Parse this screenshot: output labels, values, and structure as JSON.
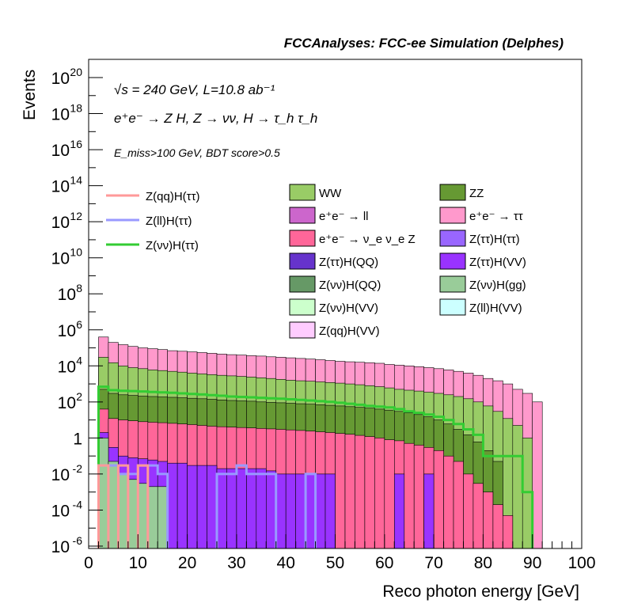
{
  "chart_data": {
    "type": "bar",
    "stacked": true,
    "title": "FCCAnalyses: FCC-ee Simulation (Delphes)",
    "xlabel": "Reco photon energy [GeV]",
    "ylabel": "Events",
    "xlim": [
      0,
      100
    ],
    "ylim": [
      1e-06,
      3e+20
    ],
    "yscale": "log",
    "x_ticks": [
      "0",
      "10",
      "20",
      "30",
      "40",
      "50",
      "60",
      "70",
      "80",
      "90",
      "100"
    ],
    "y_ticks": [
      {
        "base": "10",
        "exp": "-6"
      },
      {
        "base": "10",
        "exp": "-4"
      },
      {
        "base": "10",
        "exp": "-2"
      },
      {
        "base": "1",
        "exp": ""
      },
      {
        "base": "10",
        "exp": "2"
      },
      {
        "base": "10",
        "exp": "4"
      },
      {
        "base": "10",
        "exp": "6"
      },
      {
        "base": "10",
        "exp": "8"
      },
      {
        "base": "10",
        "exp": "10"
      },
      {
        "base": "10",
        "exp": "12"
      },
      {
        "base": "10",
        "exp": "14"
      },
      {
        "base": "10",
        "exp": "16"
      },
      {
        "base": "10",
        "exp": "18"
      },
      {
        "base": "10",
        "exp": "20"
      }
    ],
    "annotations": [
      "√s = 240 GeV, L=10.8 ab⁻¹",
      "e⁺e⁻ → Z H, Z → νν, H → τ_h τ_h",
      "E_miss>100 GeV, BDT score>0.5"
    ],
    "bins_center": [
      3,
      5,
      7,
      9,
      11,
      13,
      15,
      17,
      19,
      21,
      23,
      25,
      27,
      29,
      31,
      33,
      35,
      37,
      39,
      41,
      43,
      45,
      47,
      49,
      51,
      53,
      55,
      57,
      59,
      61,
      63,
      65,
      67,
      69,
      71,
      73,
      75,
      77,
      79,
      81,
      83,
      85,
      87,
      89,
      91
    ],
    "stack_layers": [
      {
        "name": "Z(νν)H(gg)",
        "color": "#99cc99",
        "values": [
          1.0,
          0.05,
          0.01,
          0.005,
          0.003,
          0.002,
          0.002,
          null,
          null,
          null,
          null,
          null,
          null,
          null,
          null,
          null,
          null,
          null,
          null,
          null,
          null,
          null,
          null,
          null,
          null,
          null,
          null,
          null,
          null,
          null,
          null,
          null,
          null,
          null,
          null,
          null,
          null,
          null,
          null,
          null,
          null,
          null,
          null,
          null,
          null
        ]
      },
      {
        "name": "Z(ττ)H(VV)",
        "color": "#9933ff",
        "values": [
          2.0,
          0.3,
          0.1,
          0.08,
          0.07,
          0.06,
          0.05,
          0.04,
          0.04,
          0.03,
          0.03,
          0.03,
          0.02,
          0.02,
          0.02,
          0.02,
          0.02,
          0.015,
          0.01,
          0.01,
          0.01,
          0.01,
          0.01,
          0.01,
          null,
          null,
          null,
          null,
          null,
          null,
          0.01,
          null,
          null,
          0.01,
          null,
          null,
          null,
          null,
          null,
          null,
          null,
          null,
          null,
          null,
          null
        ]
      },
      {
        "name": "e⁺e⁻ → ν_e ν_e Z",
        "color": "#ff6699",
        "values": [
          40,
          12,
          10,
          9,
          8,
          7.5,
          7,
          6.5,
          6,
          5.5,
          5,
          4.5,
          4.2,
          4,
          3.8,
          3.6,
          3.4,
          3.2,
          3,
          2.8,
          2.6,
          2.4,
          2.2,
          2,
          1.8,
          1.6,
          1.4,
          1.2,
          1,
          0.8,
          0.7,
          0.5,
          0.4,
          0.3,
          0.2,
          0.1,
          0.05,
          0.01,
          0.003,
          0.001,
          0.0002,
          5e-05,
          null,
          null,
          null
        ]
      },
      {
        "name": "ZZ",
        "color": "#669933",
        "values": [
          500,
          300,
          250,
          230,
          210,
          200,
          190,
          180,
          170,
          160,
          150,
          140,
          130,
          120,
          115,
          110,
          100,
          95,
          90,
          85,
          80,
          75,
          70,
          65,
          60,
          55,
          50,
          45,
          40,
          35,
          30,
          25,
          20,
          15,
          10,
          6,
          3,
          1.5,
          0.6,
          0.2,
          0.05,
          null,
          null,
          null,
          null
        ]
      },
      {
        "name": "WW",
        "color": "#99cc66",
        "values": [
          30000,
          15000,
          10000,
          8000,
          7000,
          6000,
          5500,
          5000,
          4500,
          4000,
          3600,
          3300,
          3000,
          2800,
          2600,
          2400,
          2200,
          2000,
          1800,
          1600,
          1500,
          1400,
          1300,
          1200,
          1100,
          1000,
          900,
          800,
          700,
          600,
          500,
          450,
          400,
          350,
          300,
          250,
          200,
          150,
          100,
          60,
          30,
          12,
          5,
          1,
          null
        ]
      },
      {
        "name": "e⁺e⁻ → ττ",
        "color": "#ff99cc",
        "values": [
          400000,
          200000,
          150000,
          120000,
          100000,
          90000,
          80000,
          70000,
          65000,
          60000,
          55000,
          50000,
          45000,
          42000,
          40000,
          37000,
          35000,
          32000,
          30000,
          28000,
          26000,
          24000,
          22000,
          20000,
          18000,
          17000,
          16000,
          15000,
          14000,
          12000,
          11000,
          10000,
          9000,
          8000,
          7000,
          6000,
          5000,
          4000,
          3000,
          2000,
          1500,
          1000,
          500,
          300,
          100
        ]
      }
    ],
    "legend": [
      {
        "name": "Z(qq)H(ττ)",
        "color": "#ff9999",
        "style": "line"
      },
      {
        "name": "Z(ll)H(ττ)",
        "color": "#9999ff",
        "style": "line"
      },
      {
        "name": "Z(νν)H(ττ)",
        "color": "#33cc33",
        "style": "line"
      },
      {
        "name": "WW",
        "color": "#99cc66",
        "style": "box"
      },
      {
        "name": "ZZ",
        "color": "#669933",
        "style": "box"
      },
      {
        "name": "e⁺e⁻ → ll",
        "color": "#cc66cc",
        "style": "box"
      },
      {
        "name": "e⁺e⁻ → ττ",
        "color": "#ff99cc",
        "style": "box"
      },
      {
        "name": "e⁺e⁻ → ν_e ν_e Z",
        "color": "#ff6699",
        "style": "box"
      },
      {
        "name": "Z(ττ)H(ττ)",
        "color": "#9966ff",
        "style": "box"
      },
      {
        "name": "Z(ττ)H(QQ)",
        "color": "#6633cc",
        "style": "box"
      },
      {
        "name": "Z(ττ)H(VV)",
        "color": "#9933ff",
        "style": "box"
      },
      {
        "name": "Z(νν)H(QQ)",
        "color": "#669966",
        "style": "box"
      },
      {
        "name": "Z(νν)H(gg)",
        "color": "#99cc99",
        "style": "box"
      },
      {
        "name": "Z(νν)H(VV)",
        "color": "#ccffcc",
        "style": "box"
      },
      {
        "name": "Z(ll)H(VV)",
        "color": "#ccffff",
        "style": "box"
      },
      {
        "name": "Z(qq)H(VV)",
        "color": "#ffccff",
        "style": "box"
      }
    ],
    "signal_lines": [
      {
        "name": "Z(νν)H(ττ)",
        "color": "#33cc33",
        "values": [
          700,
          450,
          420,
          400,
          380,
          360,
          340,
          320,
          300,
          280,
          260,
          240,
          220,
          200,
          190,
          180,
          170,
          160,
          150,
          140,
          130,
          120,
          110,
          100,
          90,
          80,
          70,
          60,
          55,
          50,
          40,
          30,
          25,
          20,
          15,
          10,
          6,
          3,
          1.5,
          0.1,
          0.1,
          0.1,
          0.1,
          0.001,
          null
        ]
      },
      {
        "name": "Z(ll)H(ττ)",
        "color": "#9999ff",
        "values": [
          0.03,
          0.03,
          0.01,
          0.01,
          0.03,
          0.03,
          0.01,
          null,
          null,
          null,
          null,
          null,
          0.01,
          0.01,
          0.03,
          0.01,
          0.01,
          0.01,
          null,
          null,
          null,
          0.01,
          null,
          null,
          null,
          null,
          null,
          null,
          null,
          null,
          null,
          null,
          null,
          null,
          null,
          null,
          null,
          null,
          null,
          null,
          null,
          null,
          null,
          null,
          null
        ]
      },
      {
        "name": "Z(qq)H(ττ)",
        "color": "#ff9999",
        "values": [
          0.03,
          null,
          0.03,
          null,
          0.03,
          null,
          null,
          null,
          null,
          null,
          null,
          null,
          null,
          null,
          null,
          null,
          null,
          null,
          null,
          null,
          null,
          null,
          null,
          null,
          null,
          null,
          null,
          null,
          null,
          null,
          null,
          null,
          null,
          null,
          null,
          null,
          null,
          null,
          null,
          null,
          null,
          null,
          null,
          null,
          null
        ]
      }
    ]
  }
}
